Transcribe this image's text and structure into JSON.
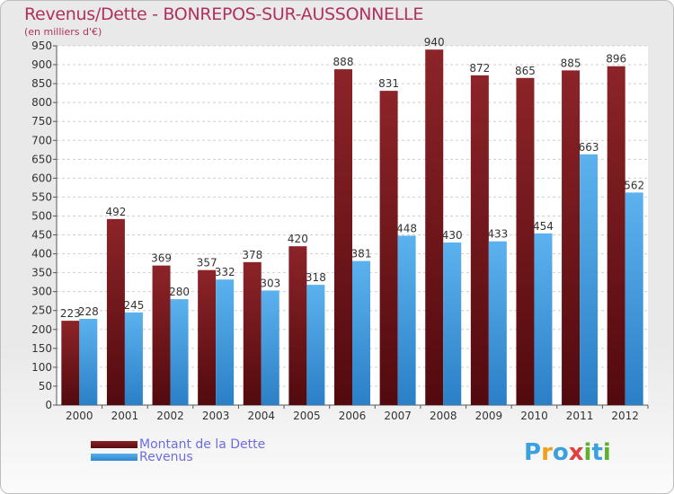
{
  "title": "Revenus/Dette - BONREPOS-SUR-AUSSONNELLE",
  "subtitle": "(en milliers d'€)",
  "logo": "Proxiti",
  "colors": {
    "debt": "#7a1418",
    "revenue": "#3d9de0",
    "title": "#b0315f",
    "legend_text": "#6c6ce0"
  },
  "chart_data": {
    "type": "bar",
    "title": "Revenus/Dette - BONREPOS-SUR-AUSSONNELLE",
    "ylabel": "(en milliers d'€)",
    "xlabel": "",
    "ylim": [
      0,
      950
    ],
    "ytick_step": 50,
    "grid": true,
    "legend_position": "bottom-left",
    "categories": [
      "2000",
      "2001",
      "2002",
      "2003",
      "2004",
      "2005",
      "2006",
      "2007",
      "2008",
      "2009",
      "2010",
      "2011",
      "2012"
    ],
    "series": [
      {
        "name": "Montant de la Dette",
        "values": [
          223,
          492,
          369,
          357,
          378,
          420,
          888,
          831,
          940,
          872,
          865,
          885,
          896
        ]
      },
      {
        "name": "Revenus",
        "values": [
          228,
          245,
          280,
          332,
          303,
          318,
          381,
          448,
          430,
          433,
          454,
          663,
          562
        ]
      }
    ]
  }
}
